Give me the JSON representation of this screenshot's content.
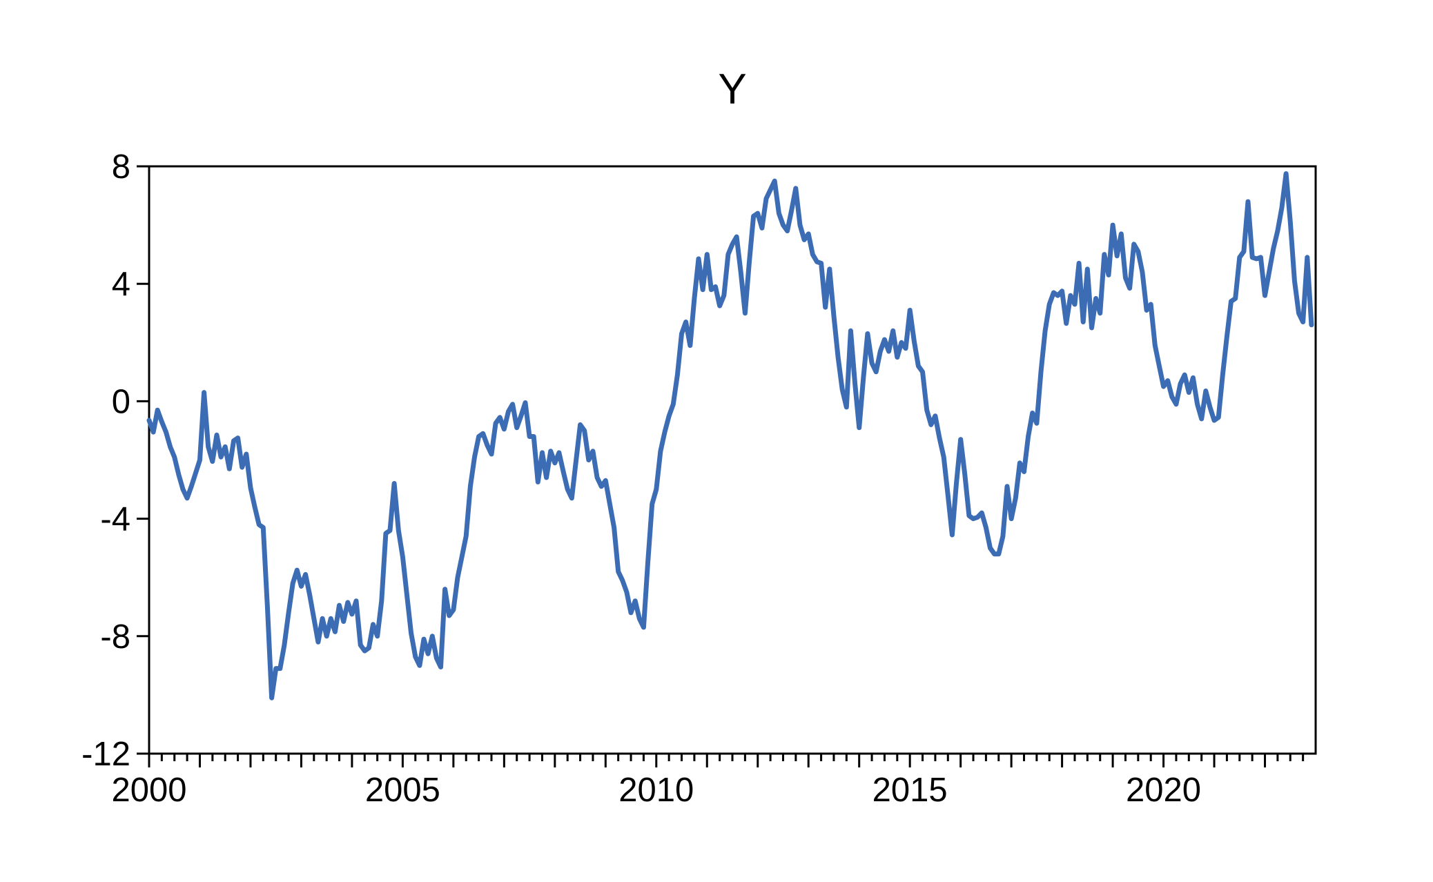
{
  "chart_data": {
    "type": "line",
    "title": "Y",
    "xlabel": "",
    "ylabel": "",
    "frequency": "monthly",
    "x_start": "2000M01",
    "x_end": "2022M12",
    "x_span_years": 23,
    "x_tick_labels": [
      "2000",
      "2005",
      "2010",
      "2015",
      "2020"
    ],
    "x_tick_year_offsets": [
      0,
      5,
      10,
      15,
      20
    ],
    "minor_ticks_per_year": "quarterly",
    "y_tick_labels": [
      "8",
      "4",
      "0",
      "-4",
      "-8",
      "-12"
    ],
    "y_tick_values": [
      8,
      4,
      0,
      -4,
      -8,
      -12
    ],
    "ylim": [
      -12,
      8
    ],
    "grid": false,
    "legend_position": "none",
    "line_color": "#3C6CB4",
    "frame_color": "#000000",
    "series": [
      {
        "name": "Y",
        "values": [
          -0.65,
          -1.05,
          -0.3,
          -0.7,
          -1.05,
          -1.55,
          -1.9,
          -2.5,
          -3.0,
          -3.3,
          -2.9,
          -2.45,
          -2.0,
          0.3,
          -1.55,
          -2.05,
          -1.15,
          -1.9,
          -1.55,
          -2.3,
          -1.35,
          -1.25,
          -2.25,
          -1.8,
          -2.95,
          -3.6,
          -4.2,
          -4.3,
          -7.0,
          -10.1,
          -9.1,
          -9.1,
          -8.3,
          -7.2,
          -6.2,
          -5.75,
          -6.3,
          -5.9,
          -6.6,
          -7.4,
          -8.2,
          -7.4,
          -8.0,
          -7.4,
          -7.85,
          -6.95,
          -7.5,
          -6.85,
          -7.25,
          -6.8,
          -8.3,
          -8.5,
          -8.4,
          -7.6,
          -8.0,
          -6.8,
          -4.5,
          -4.4,
          -2.8,
          -4.4,
          -5.3,
          -6.6,
          -7.9,
          -8.7,
          -9.0,
          -8.1,
          -8.6,
          -8.0,
          -8.75,
          -9.05,
          -6.4,
          -7.3,
          -7.1,
          -6.0,
          -5.3,
          -4.6,
          -2.9,
          -1.9,
          -1.2,
          -1.1,
          -1.5,
          -1.8,
          -0.75,
          -0.55,
          -0.95,
          -0.35,
          -0.1,
          -0.9,
          -0.5,
          -0.05,
          -1.2,
          -1.2,
          -2.75,
          -1.75,
          -2.6,
          -1.7,
          -2.1,
          -1.75,
          -2.4,
          -3.0,
          -3.3,
          -2.05,
          -0.8,
          -1.0,
          -2.0,
          -1.7,
          -2.6,
          -2.9,
          -2.7,
          -3.5,
          -4.3,
          -5.8,
          -6.1,
          -6.5,
          -7.2,
          -6.8,
          -7.4,
          -7.7,
          -5.5,
          -3.5,
          -3.0,
          -1.7,
          -1.05,
          -0.5,
          -0.1,
          0.9,
          2.3,
          2.7,
          1.9,
          3.5,
          4.85,
          3.8,
          5.0,
          3.8,
          3.9,
          3.25,
          3.6,
          5.0,
          5.35,
          5.6,
          4.4,
          3.0,
          4.75,
          6.3,
          6.4,
          5.9,
          6.9,
          7.2,
          7.5,
          6.4,
          6.0,
          5.8,
          6.5,
          7.25,
          6.0,
          5.5,
          5.7,
          5.0,
          4.75,
          4.7,
          3.2,
          4.5,
          2.9,
          1.5,
          0.4,
          -0.2,
          2.4,
          0.6,
          -0.9,
          0.8,
          2.3,
          1.3,
          1.0,
          1.7,
          2.1,
          1.7,
          2.4,
          1.5,
          2.0,
          1.8,
          3.1,
          2.05,
          1.2,
          1.0,
          -0.3,
          -0.8,
          -0.5,
          -1.25,
          -1.9,
          -3.2,
          -4.55,
          -2.8,
          -1.3,
          -2.5,
          -3.9,
          -4.0,
          -3.95,
          -3.8,
          -4.3,
          -5.0,
          -5.2,
          -5.2,
          -4.6,
          -2.9,
          -4.0,
          -3.3,
          -2.1,
          -2.4,
          -1.2,
          -0.4,
          -0.75,
          1.0,
          2.4,
          3.3,
          3.7,
          3.6,
          3.75,
          2.65,
          3.6,
          3.3,
          4.7,
          2.7,
          4.5,
          2.5,
          3.5,
          3.0,
          5.0,
          4.3,
          6.0,
          4.95,
          5.7,
          4.2,
          3.85,
          5.35,
          5.1,
          4.4,
          3.1,
          3.3,
          1.9,
          1.2,
          0.5,
          0.7,
          0.15,
          -0.1,
          0.6,
          0.9,
          0.3,
          0.8,
          -0.1,
          -0.6,
          0.35,
          -0.2,
          -0.65,
          -0.55,
          0.9,
          2.2,
          3.4,
          3.5,
          4.9,
          5.1,
          6.8,
          4.9,
          4.85,
          4.9,
          3.6,
          4.4,
          5.2,
          5.8,
          6.6,
          7.75,
          6.1,
          4.1,
          3.0,
          2.7,
          4.9,
          2.6
        ]
      }
    ]
  }
}
